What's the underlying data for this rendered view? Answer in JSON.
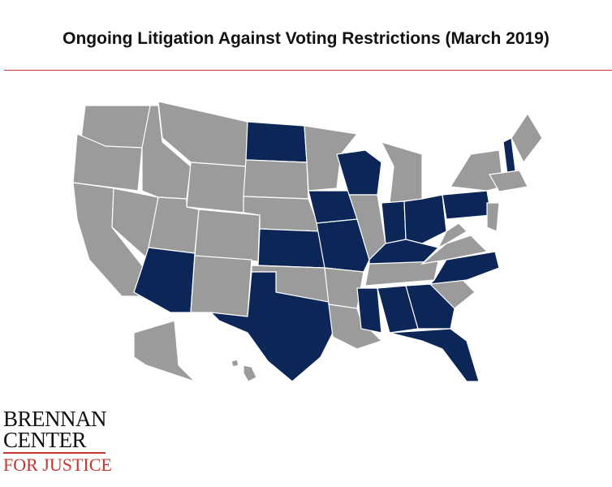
{
  "title": "Ongoing Litigation Against Voting Restrictions (March 2019)",
  "logo": {
    "line1": "BRENNAN",
    "line2": "CENTER",
    "line3": "FOR JUSTICE"
  }
}
